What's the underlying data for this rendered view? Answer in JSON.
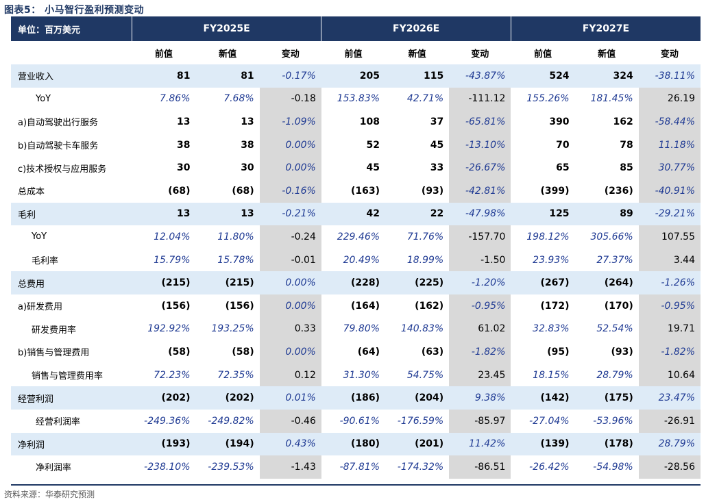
{
  "title": "图表5： 小马智行盈利预测变动",
  "unit_label": "单位：百万美元",
  "years": [
    "FY2025E",
    "FY2026E",
    "FY2027E"
  ],
  "subheaders": [
    "前值",
    "新值",
    "变动"
  ],
  "rows": [
    {
      "label": "营业收入",
      "style": "major",
      "indent": 0,
      "type": "num",
      "vals": [
        "81",
        "81",
        "-0.17%",
        "205",
        "115",
        "-43.87%",
        "524",
        "324",
        "-38.11%"
      ]
    },
    {
      "label": "YoY",
      "style": "normal",
      "indent": 1,
      "type": "pct",
      "vals": [
        "7.86%",
        "7.68%",
        "-0.18",
        "153.83%",
        "42.71%",
        "-111.12",
        "155.26%",
        "181.45%",
        "26.19"
      ]
    },
    {
      "label": "a)自动驾驶出行服务",
      "style": "normal",
      "indent": 0,
      "type": "num",
      "vals": [
        "13",
        "13",
        "-1.09%",
        "108",
        "37",
        "-65.81%",
        "390",
        "162",
        "-58.44%"
      ]
    },
    {
      "label": "b)自动驾驶卡车服务",
      "style": "normal",
      "indent": 0,
      "type": "num",
      "vals": [
        "38",
        "38",
        "0.00%",
        "52",
        "45",
        "-13.10%",
        "70",
        "78",
        "11.18%"
      ]
    },
    {
      "label": "c)技术授权与应用服务",
      "style": "normal",
      "indent": 0,
      "type": "num",
      "vals": [
        "30",
        "30",
        "0.00%",
        "45",
        "33",
        "-26.67%",
        "65",
        "85",
        "30.77%"
      ]
    },
    {
      "label": "总成本",
      "style": "normal",
      "indent": 0,
      "type": "num",
      "vals": [
        "(68)",
        "(68)",
        "-0.16%",
        "(163)",
        "(93)",
        "-42.81%",
        "(399)",
        "(236)",
        "-40.91%"
      ]
    },
    {
      "label": "毛利",
      "style": "major",
      "indent": 0,
      "type": "num",
      "vals": [
        "13",
        "13",
        "-0.21%",
        "42",
        "22",
        "-47.98%",
        "125",
        "89",
        "-29.21%"
      ]
    },
    {
      "label": "YoY",
      "style": "normal",
      "indent": 2,
      "type": "pct",
      "vals": [
        "12.04%",
        "11.80%",
        "-0.24",
        "229.46%",
        "71.76%",
        "-157.70",
        "198.12%",
        "305.66%",
        "107.55"
      ]
    },
    {
      "label": "毛利率",
      "style": "normal",
      "indent": 2,
      "type": "pct",
      "vals": [
        "15.79%",
        "15.78%",
        "-0.01",
        "20.49%",
        "18.99%",
        "-1.50",
        "23.93%",
        "27.37%",
        "3.44"
      ]
    },
    {
      "label": "总费用",
      "style": "major",
      "indent": 0,
      "type": "num",
      "vals": [
        "(215)",
        "(215)",
        "0.00%",
        "(228)",
        "(225)",
        "-1.20%",
        "(267)",
        "(264)",
        "-1.26%"
      ]
    },
    {
      "label": "a)研发费用",
      "style": "normal",
      "indent": 0,
      "type": "num",
      "vals": [
        "(156)",
        "(156)",
        "0.00%",
        "(164)",
        "(162)",
        "-0.95%",
        "(172)",
        "(170)",
        "-0.95%"
      ]
    },
    {
      "label": "研发费用率",
      "style": "normal",
      "indent": 2,
      "type": "pct",
      "vals": [
        "192.92%",
        "193.25%",
        "0.33",
        "79.80%",
        "140.83%",
        "61.02",
        "32.83%",
        "52.54%",
        "19.71"
      ]
    },
    {
      "label": "b)销售与管理费用",
      "style": "normal",
      "indent": 0,
      "type": "num",
      "vals": [
        "(58)",
        "(58)",
        "0.00%",
        "(64)",
        "(63)",
        "-1.82%",
        "(95)",
        "(93)",
        "-1.82%"
      ]
    },
    {
      "label": "销售与管理费用率",
      "style": "normal",
      "indent": 2,
      "type": "pct",
      "vals": [
        "72.23%",
        "72.35%",
        "0.12",
        "31.30%",
        "54.75%",
        "23.45",
        "18.15%",
        "28.79%",
        "10.64"
      ]
    },
    {
      "label": "经营利润",
      "style": "major",
      "indent": 0,
      "type": "num",
      "vals": [
        "(202)",
        "(202)",
        "0.01%",
        "(186)",
        "(204)",
        "9.38%",
        "(142)",
        "(175)",
        "23.47%"
      ]
    },
    {
      "label": "经营利润率",
      "style": "normal",
      "indent": 1,
      "type": "pct",
      "vals": [
        "-249.36%",
        "-249.82%",
        "-0.46",
        "-90.61%",
        "-176.59%",
        "-85.97",
        "-27.04%",
        "-53.96%",
        "-26.91"
      ]
    },
    {
      "label": "净利润",
      "style": "major",
      "indent": 0,
      "type": "num",
      "vals": [
        "(193)",
        "(194)",
        "0.43%",
        "(180)",
        "(201)",
        "11.42%",
        "(139)",
        "(178)",
        "28.79%"
      ]
    },
    {
      "label": "净利润率",
      "style": "normal",
      "indent": 1,
      "type": "pct",
      "vals": [
        "-238.10%",
        "-239.53%",
        "-1.43",
        "-87.81%",
        "-174.32%",
        "-86.51",
        "-26.42%",
        "-54.98%",
        "-28.56"
      ]
    }
  ],
  "source": "资料来源：华泰研究预测",
  "colors": {
    "header_bg": "#1f3864",
    "major_row_bg": "#deebf7",
    "change_col_bg": "#d9d9d9",
    "pct_text": "#1f3a93"
  }
}
